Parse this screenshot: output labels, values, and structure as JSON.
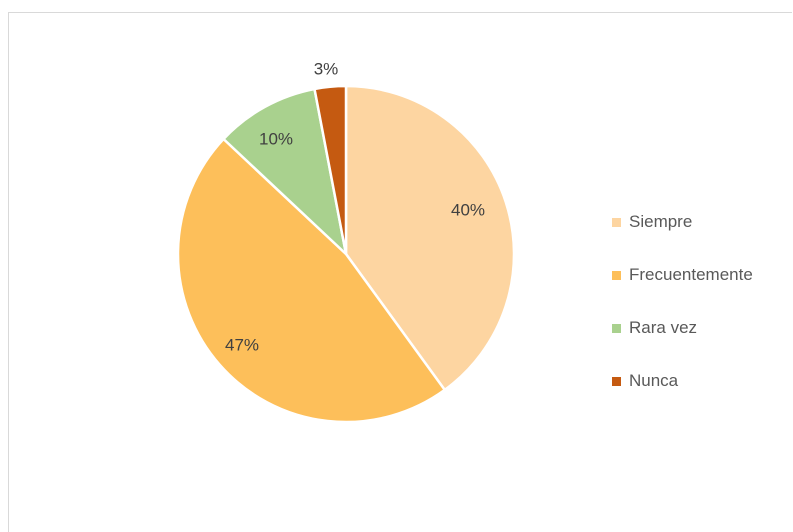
{
  "chart_data": {
    "type": "pie",
    "title": "",
    "categories": [
      "Siempre",
      "Frecuentemente",
      "Rara vez",
      "Nunca"
    ],
    "values": [
      40,
      47,
      10,
      3
    ],
    "labels": [
      "40%",
      "47%",
      "10%",
      "3%"
    ],
    "colors": [
      "#fdd5a1",
      "#fdbf5a",
      "#a9d18e",
      "#c55a11"
    ],
    "legend_position": "right",
    "start_angle_deg": 0,
    "direction": "clockwise"
  }
}
